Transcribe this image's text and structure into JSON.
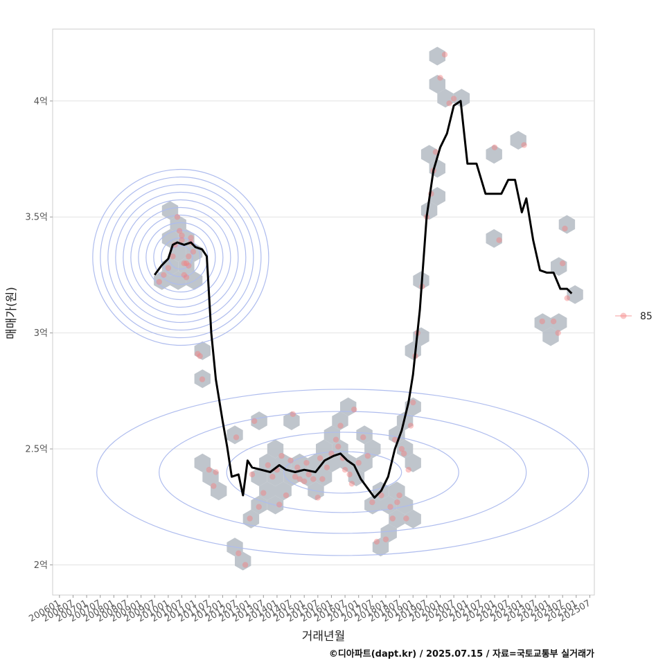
{
  "chart_data": {
    "type": "scatter",
    "xlabel": "거래년월",
    "ylabel": "매매가(원)",
    "caption": "©디아파트(dapt.kr) / 2025.07.15 / 자료=국토교통부 실거래가",
    "x_tick_labels": [
      "200601",
      "200607",
      "200701",
      "200707",
      "200801",
      "200807",
      "200901",
      "200907",
      "201001",
      "201007",
      "201101",
      "201107",
      "201201",
      "201207",
      "201301",
      "201307",
      "201401",
      "201407",
      "201501",
      "201507",
      "201601",
      "201607",
      "201701",
      "201707",
      "201801",
      "201807",
      "201901",
      "201907",
      "202001",
      "202007",
      "202101",
      "202107",
      "202201",
      "202207",
      "202301",
      "202307",
      "202401",
      "202407",
      "202501",
      "202507"
    ],
    "y_ticks": [
      {
        "value": 2.0,
        "label": "2억"
      },
      {
        "value": 2.5,
        "label": "2.5억"
      },
      {
        "value": 3.0,
        "label": "3억"
      },
      {
        "value": 3.5,
        "label": "3.5억"
      },
      {
        "value": 4.0,
        "label": "4억"
      }
    ],
    "xlim": [
      "2006-01",
      "2025-07"
    ],
    "ylim": [
      1.87,
      4.31
    ],
    "grid": "horizontal",
    "legend": {
      "position": "right",
      "entries": [
        "85"
      ]
    },
    "colors": {
      "points": "#f47e7e",
      "hexbin": "#b8bfc6",
      "contour": "#aebcee",
      "trend": "#000000",
      "grid": "#e2e2e2",
      "panel_border": "#cccccc"
    },
    "series": [
      {
        "name": "85",
        "kind": "transactions",
        "points": [
          [
            "2009-09",
            3.22
          ],
          [
            "2009-11",
            3.25
          ],
          [
            "2010-01",
            3.28
          ],
          [
            "2010-03",
            3.33
          ],
          [
            "2010-04",
            3.38
          ],
          [
            "2010-05",
            3.5
          ],
          [
            "2010-06",
            3.44
          ],
          [
            "2010-07",
            3.42
          ],
          [
            "2010-07",
            3.4
          ],
          [
            "2010-08",
            3.3
          ],
          [
            "2010-08",
            3.25
          ],
          [
            "2010-09",
            3.24
          ],
          [
            "2010-09",
            3.3
          ],
          [
            "2010-10",
            3.29
          ],
          [
            "2010-10",
            3.33
          ],
          [
            "2010-11",
            3.41
          ],
          [
            "2010-11",
            3.39
          ],
          [
            "2010-12",
            3.35
          ],
          [
            "2011-02",
            2.91
          ],
          [
            "2011-03",
            2.9
          ],
          [
            "2011-04",
            2.8
          ],
          [
            "2011-07",
            2.41
          ],
          [
            "2011-09",
            2.34
          ],
          [
            "2011-10",
            2.4
          ],
          [
            "2012-07",
            2.55
          ],
          [
            "2012-08",
            2.05
          ],
          [
            "2012-11",
            2.0
          ],
          [
            "2013-01",
            2.2
          ],
          [
            "2013-02",
            2.39
          ],
          [
            "2013-03",
            2.62
          ],
          [
            "2013-05",
            2.25
          ],
          [
            "2013-07",
            2.31
          ],
          [
            "2013-09",
            2.43
          ],
          [
            "2013-11",
            2.38
          ],
          [
            "2014-01",
            2.41
          ],
          [
            "2014-02",
            2.26
          ],
          [
            "2014-03",
            2.47
          ],
          [
            "2014-05",
            2.3
          ],
          [
            "2014-07",
            2.45
          ],
          [
            "2014-08",
            2.65
          ],
          [
            "2014-09",
            2.38
          ],
          [
            "2014-10",
            2.42
          ],
          [
            "2014-11",
            2.37
          ],
          [
            "2015-01",
            2.36
          ],
          [
            "2015-02",
            2.44
          ],
          [
            "2015-03",
            2.39
          ],
          [
            "2015-05",
            2.37
          ],
          [
            "2015-07",
            2.29
          ],
          [
            "2015-08",
            2.46
          ],
          [
            "2015-09",
            2.37
          ],
          [
            "2015-11",
            2.42
          ],
          [
            "2016-01",
            2.48
          ],
          [
            "2016-03",
            2.54
          ],
          [
            "2016-04",
            2.51
          ],
          [
            "2016-05",
            2.6
          ],
          [
            "2016-06",
            2.46
          ],
          [
            "2016-07",
            2.41
          ],
          [
            "2016-09",
            2.39
          ],
          [
            "2016-10",
            2.35
          ],
          [
            "2016-11",
            2.67
          ],
          [
            "2017-01",
            2.44
          ],
          [
            "2017-03",
            2.55
          ],
          [
            "2017-05",
            2.47
          ],
          [
            "2017-07",
            2.27
          ],
          [
            "2017-09",
            2.1
          ],
          [
            "2017-11",
            2.3
          ],
          [
            "2018-01",
            2.11
          ],
          [
            "2018-03",
            2.25
          ],
          [
            "2018-04",
            2.2
          ],
          [
            "2018-05",
            2.54
          ],
          [
            "2018-06",
            2.27
          ],
          [
            "2018-07",
            2.3
          ],
          [
            "2018-08",
            2.5
          ],
          [
            "2018-09",
            2.48
          ],
          [
            "2018-10",
            2.2
          ],
          [
            "2018-11",
            2.41
          ],
          [
            "2018-12",
            2.6
          ],
          [
            "2019-01",
            2.7
          ],
          [
            "2019-02",
            2.9
          ],
          [
            "2019-03",
            3.0
          ],
          [
            "2019-05",
            3.2
          ],
          [
            "2019-07",
            3.5
          ],
          [
            "2019-09",
            3.6
          ],
          [
            "2019-10",
            3.7
          ],
          [
            "2019-11",
            3.78
          ],
          [
            "2020-01",
            4.1
          ],
          [
            "2020-03",
            4.2
          ],
          [
            "2020-05",
            3.99
          ],
          [
            "2020-07",
            4.01
          ],
          [
            "2022-01",
            3.8
          ],
          [
            "2022-03",
            3.4
          ],
          [
            "2023-02",
            3.81
          ],
          [
            "2023-10",
            3.05
          ],
          [
            "2024-03",
            3.05
          ],
          [
            "2024-05",
            3.0
          ],
          [
            "2024-07",
            3.3
          ],
          [
            "2024-08",
            3.45
          ],
          [
            "2024-09",
            3.15
          ]
        ]
      },
      {
        "name": "",
        "kind": "moving-average",
        "points": [
          [
            "2009-07",
            3.25
          ],
          [
            "2009-10",
            3.29
          ],
          [
            "2010-01",
            3.32
          ],
          [
            "2010-03",
            3.38
          ],
          [
            "2010-05",
            3.39
          ],
          [
            "2010-08",
            3.38
          ],
          [
            "2010-11",
            3.39
          ],
          [
            "2011-01",
            3.37
          ],
          [
            "2011-04",
            3.36
          ],
          [
            "2011-06",
            3.33
          ],
          [
            "2011-08",
            3.0
          ],
          [
            "2011-10",
            2.8
          ],
          [
            "2012-01",
            2.62
          ],
          [
            "2012-03",
            2.51
          ],
          [
            "2012-05",
            2.38
          ],
          [
            "2012-08",
            2.39
          ],
          [
            "2012-10",
            2.3
          ],
          [
            "2012-12",
            2.45
          ],
          [
            "2013-02",
            2.42
          ],
          [
            "2013-06",
            2.41
          ],
          [
            "2013-10",
            2.4
          ],
          [
            "2014-02",
            2.43
          ],
          [
            "2014-05",
            2.41
          ],
          [
            "2014-09",
            2.4
          ],
          [
            "2015-01",
            2.41
          ],
          [
            "2015-06",
            2.4
          ],
          [
            "2015-10",
            2.45
          ],
          [
            "2016-02",
            2.47
          ],
          [
            "2016-05",
            2.48
          ],
          [
            "2016-08",
            2.45
          ],
          [
            "2016-11",
            2.43
          ],
          [
            "2017-02",
            2.37
          ],
          [
            "2017-05",
            2.33
          ],
          [
            "2017-08",
            2.29
          ],
          [
            "2017-11",
            2.32
          ],
          [
            "2018-02",
            2.38
          ],
          [
            "2018-05",
            2.5
          ],
          [
            "2018-08",
            2.58
          ],
          [
            "2018-11",
            2.7
          ],
          [
            "2019-01",
            2.82
          ],
          [
            "2019-04",
            3.1
          ],
          [
            "2019-07",
            3.5
          ],
          [
            "2019-10",
            3.7
          ],
          [
            "2020-01",
            3.8
          ],
          [
            "2020-04",
            3.86
          ],
          [
            "2020-07",
            3.98
          ],
          [
            "2020-10",
            4.0
          ],
          [
            "2021-01",
            3.73
          ],
          [
            "2021-05",
            3.73
          ],
          [
            "2021-09",
            3.6
          ],
          [
            "2022-01",
            3.6
          ],
          [
            "2022-04",
            3.6
          ],
          [
            "2022-07",
            3.66
          ],
          [
            "2022-10",
            3.66
          ],
          [
            "2023-01",
            3.52
          ],
          [
            "2023-03",
            3.58
          ],
          [
            "2023-06",
            3.4
          ],
          [
            "2023-09",
            3.27
          ],
          [
            "2023-12",
            3.26
          ],
          [
            "2024-03",
            3.26
          ],
          [
            "2024-06",
            3.19
          ],
          [
            "2024-09",
            3.19
          ],
          [
            "2024-11",
            3.17
          ]
        ]
      }
    ]
  }
}
